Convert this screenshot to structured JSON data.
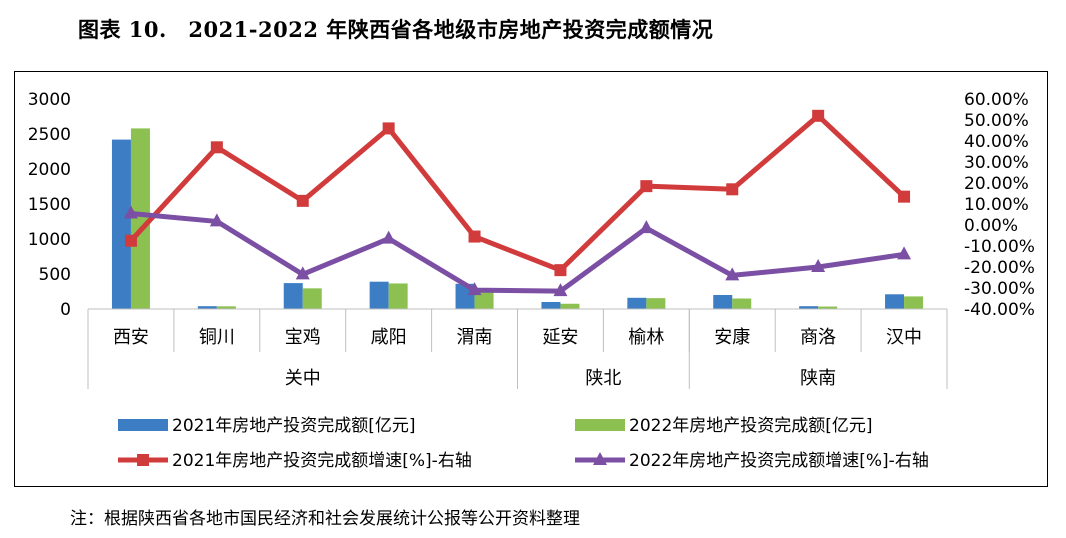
{
  "figure_title": "图表 10.　2021-2022 年陕西省各地级市房地产投资完成额情况",
  "note": "注：根据陕西省各地市国民经济和社会发展统计公报等公开资料整理",
  "colors": {
    "bar2021": "#3C7DC4",
    "bar2022": "#8CC152",
    "line2021": "#D13B3B",
    "line2022": "#7B4FA3"
  },
  "chart_data": {
    "type": "bar",
    "categories": [
      "西安",
      "铜川",
      "宝鸡",
      "咸阳",
      "渭南",
      "延安",
      "榆林",
      "安康",
      "商洛",
      "汉中"
    ],
    "groups": [
      {
        "label": "关中",
        "count": 5
      },
      {
        "label": "陕北",
        "count": 2
      },
      {
        "label": "陕南",
        "count": 3
      }
    ],
    "ylim": [
      0,
      3000
    ],
    "yticks": [
      "3000",
      "2500",
      "2000",
      "1500",
      "1000",
      "500",
      "0"
    ],
    "y2lim": [
      -40,
      60
    ],
    "y2ticks": [
      "60.00%",
      "50.00%",
      "40.00%",
      "30.00%",
      "20.00%",
      "10.00%",
      "0.00%",
      "-10.00%",
      "-20.00%",
      "-30.00%",
      "-40.00%"
    ],
    "series": [
      {
        "name": "2021年房地产投资完成额[亿元]",
        "kind": "bar",
        "axis": "left",
        "values": [
          2420,
          40,
          370,
          390,
          360,
          100,
          160,
          200,
          40,
          210
        ]
      },
      {
        "name": "2022年房地产投资完成额[亿元]",
        "kind": "bar",
        "axis": "left",
        "values": [
          2580,
          38,
          295,
          365,
          270,
          75,
          155,
          150,
          35,
          180
        ]
      },
      {
        "name": "2021年房地产投资完成额增速[%]-右轴",
        "kind": "line",
        "axis": "right",
        "values": [
          -7.5,
          37.0,
          11.5,
          46.0,
          -5.5,
          -21.5,
          18.5,
          17.0,
          52.0,
          13.5
        ]
      },
      {
        "name": "2022年房地产投资完成额增速[%]-右轴",
        "kind": "line",
        "axis": "right",
        "values": [
          5.5,
          1.7,
          -23.5,
          -6.5,
          -31.0,
          -31.5,
          -1.5,
          -24.0,
          -20.0,
          -14.0
        ]
      }
    ]
  }
}
